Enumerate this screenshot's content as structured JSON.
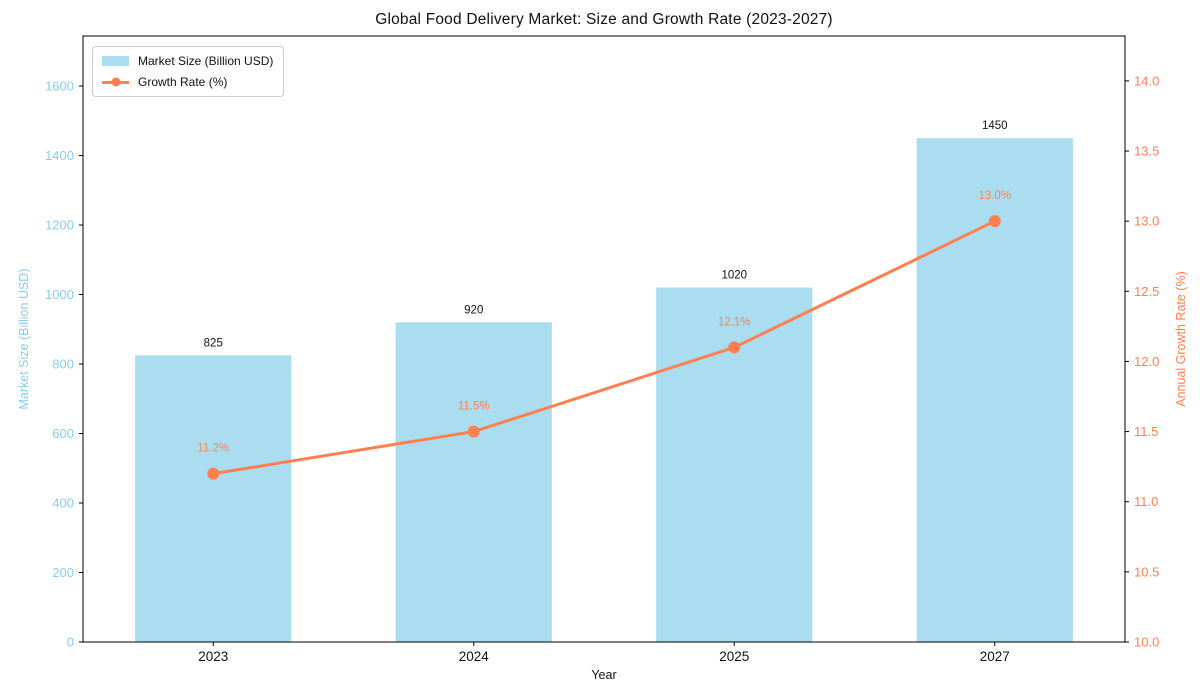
{
  "title": "Global Food Delivery Market: Size and Growth Rate (2023-2027)",
  "chart_data": {
    "type": "bar+line",
    "title": "Global Food Delivery Market: Size and Growth Rate (2023-2027)",
    "categories": [
      "2023",
      "2024",
      "2025",
      "2027"
    ],
    "series": [
      {
        "name": "Market Size (Billion USD)",
        "type": "bar",
        "axis": "left",
        "values": [
          825,
          920,
          1020,
          1450
        ],
        "labels": [
          "825",
          "920",
          "1020",
          "1450"
        ],
        "color": "#87CEEB",
        "fill_alpha": 0.7
      },
      {
        "name": "Growth Rate (%)",
        "type": "line",
        "axis": "right",
        "values": [
          11.2,
          11.5,
          12.1,
          13.0
        ],
        "labels": [
          "11.2%",
          "11.5%",
          "12.1%",
          "13.0%"
        ],
        "color": "#FF7F50",
        "marker": "circle"
      }
    ],
    "xlabel": "Year",
    "ylabel_left": "Market Size (Billion USD)",
    "ylabel_right": "Annual Growth Rate (%)",
    "y_left": {
      "lim": [
        0,
        1744
      ],
      "ticks": [
        0,
        200,
        400,
        600,
        800,
        1000,
        1200,
        1400,
        1600
      ],
      "color": "#87CEEB"
    },
    "y_right": {
      "lim": [
        10.0,
        14.32
      ],
      "ticks": [
        10.0,
        10.5,
        11.0,
        11.5,
        12.0,
        12.5,
        13.0,
        13.5,
        14.0
      ],
      "color": "#FF7F50"
    },
    "grid": false,
    "legend": {
      "position": "upper left",
      "entries": [
        "Market Size (Billion USD)",
        "Growth Rate (%)"
      ]
    },
    "text_color": "#111111"
  }
}
